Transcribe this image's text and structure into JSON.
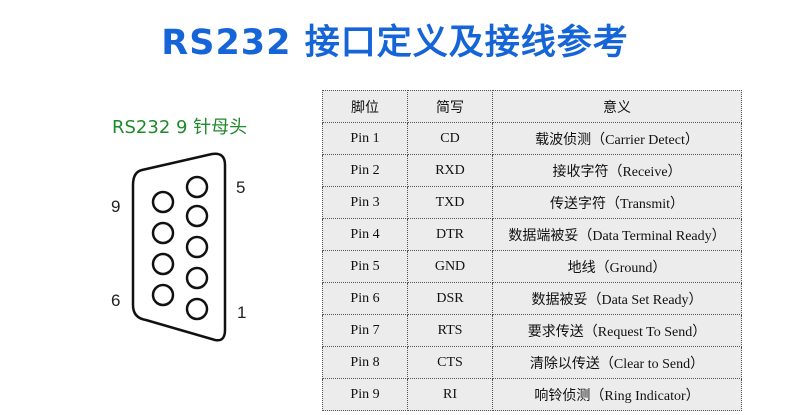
{
  "title": "RS232 接口定义及接线参考",
  "connector": {
    "label": "RS232 9 针母头",
    "pin_labels": {
      "top_right": "5",
      "top_left": "9",
      "bottom_left": "6",
      "bottom_right": "1"
    }
  },
  "table": {
    "headers": [
      "脚位",
      "简写",
      "意义"
    ],
    "rows": [
      [
        "Pin 1",
        "CD",
        "载波侦测（Carrier Detect）"
      ],
      [
        "Pin 2",
        "RXD",
        "接收字符（Receive）"
      ],
      [
        "Pin 3",
        "TXD",
        "传送字符（Transmit）"
      ],
      [
        "Pin 4",
        "DTR",
        "数据端被妥（Data Terminal Ready）"
      ],
      [
        "Pin 5",
        "GND",
        "地线（Ground）"
      ],
      [
        "Pin 6",
        "DSR",
        "数据被妥（Data Set Ready）"
      ],
      [
        "Pin 7",
        "RTS",
        "要求传送（Request To Send）"
      ],
      [
        "Pin 8",
        "CTS",
        "清除以传送（Clear to Send）"
      ],
      [
        "Pin 9",
        "RI",
        "响铃侦测（Ring Indicator）"
      ]
    ]
  },
  "colors": {
    "title": "#1565d8",
    "label": "#1f8a2a",
    "table_bg": "#ececec"
  }
}
